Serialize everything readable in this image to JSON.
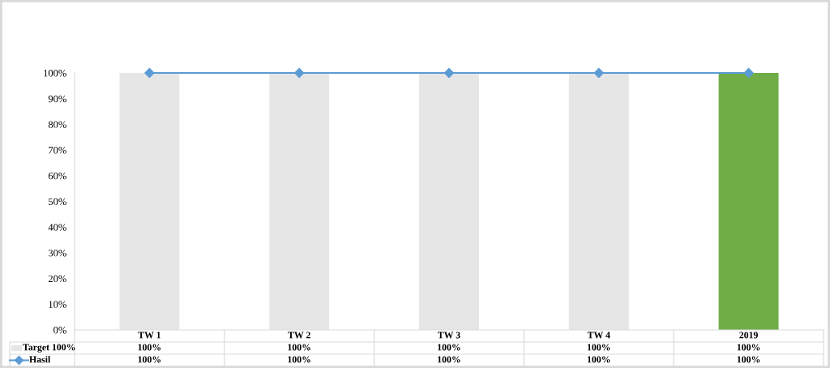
{
  "chart_data": {
    "type": "bar",
    "categories": [
      "TW 1",
      "TW 2",
      "TW 3",
      "TW 4",
      "2019"
    ],
    "series": [
      {
        "name": "Target 100%",
        "colors": [
          "#e7e6e6",
          "#e7e6e6",
          "#e7e6e6",
          "#e7e6e6",
          "#70ad47"
        ],
        "values": [
          100,
          100,
          100,
          100,
          100
        ],
        "value_labels": [
          "100%",
          "100%",
          "100%",
          "100%",
          "100%"
        ]
      },
      {
        "name": "Hasil",
        "type": "line",
        "color": "#5b9bd5",
        "values": [
          100,
          100,
          100,
          100,
          100
        ],
        "value_labels": [
          "100%",
          "100%",
          "100%",
          "100%",
          "100%"
        ]
      }
    ],
    "ylim": [
      0,
      100
    ],
    "yticks": [
      {
        "value": 0,
        "label": "0%"
      },
      {
        "value": 10,
        "label": "10%"
      },
      {
        "value": 20,
        "label": "20%"
      },
      {
        "value": 30,
        "label": "30%"
      },
      {
        "value": 40,
        "label": "40%"
      },
      {
        "value": 50,
        "label": "50%"
      },
      {
        "value": 60,
        "label": "60%"
      },
      {
        "value": 70,
        "label": "70%"
      },
      {
        "value": 80,
        "label": "80%"
      },
      {
        "value": 90,
        "label": "90%"
      },
      {
        "value": 100,
        "label": "100%"
      }
    ],
    "legend": "bottom",
    "marker": "diamond",
    "line_style": "solid"
  }
}
